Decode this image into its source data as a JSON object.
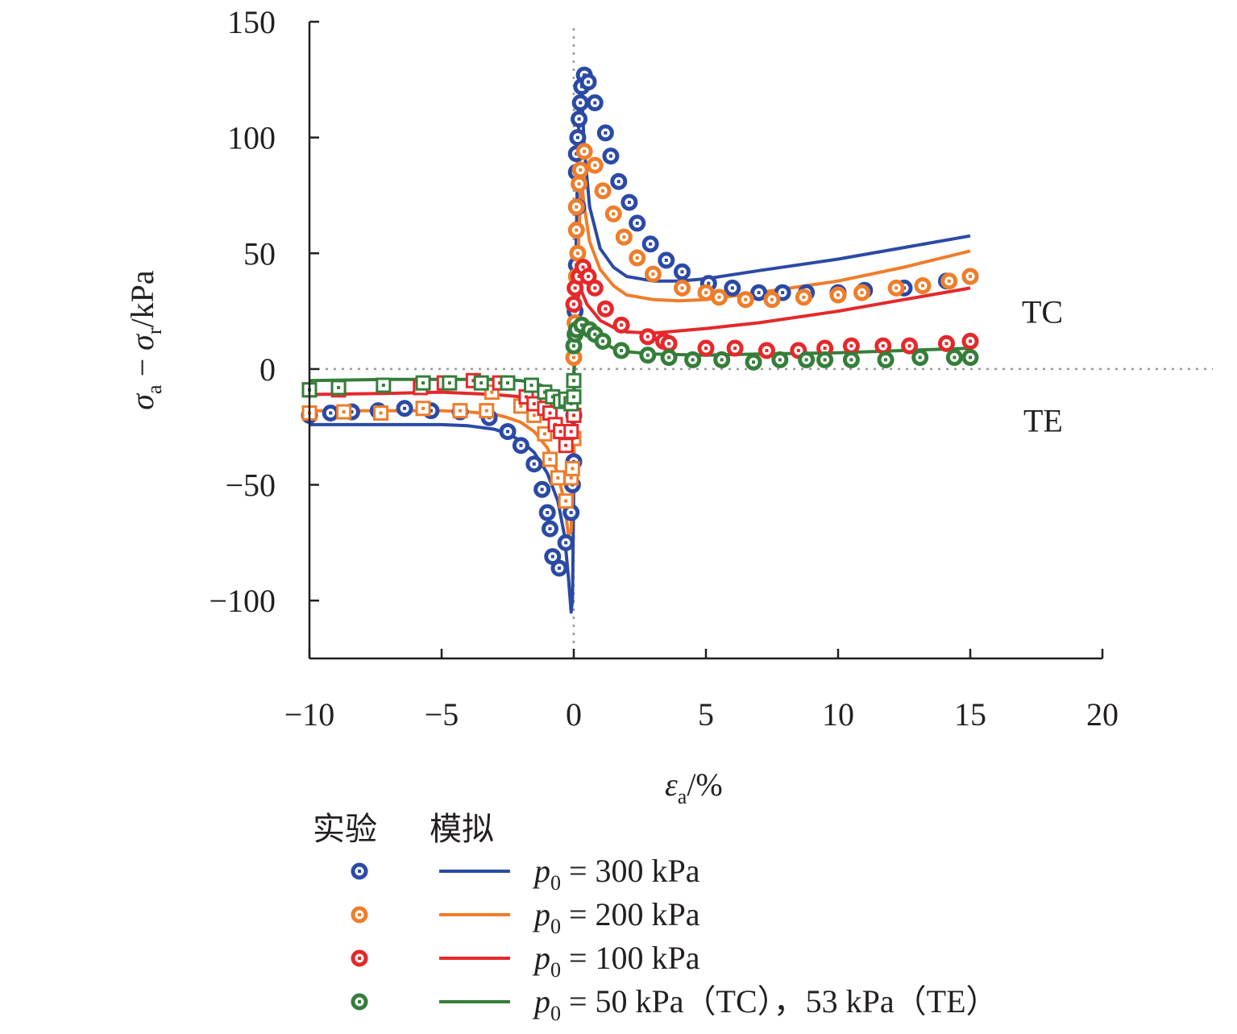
{
  "chart_data": {
    "type": "line",
    "xlim": [
      -10,
      20
    ],
    "ylim": [
      -125,
      150
    ],
    "x_ticks": [
      -10,
      -5,
      0,
      5,
      10,
      15,
      20
    ],
    "y_ticks": [
      -100,
      -50,
      0,
      50,
      100,
      150
    ],
    "x_tick_labels": [
      "−10",
      "−5",
      "0",
      "5",
      "10",
      "15",
      "20"
    ],
    "y_tick_labels": [
      "−100",
      "−50",
      "0",
      "50",
      "100",
      "150"
    ],
    "xlabel": {
      "main": "ε",
      "sub": "a",
      "rest": "/%"
    },
    "ylabel": {
      "s1": "σ",
      "sub1": "a",
      "minus": " − ",
      "s2": "σ",
      "sub2": "r",
      "rest": "/kPa"
    },
    "region_labels": {
      "upper": "TC",
      "lower": "TE"
    },
    "zero_lines": {
      "style": "dotted",
      "color": "#999999"
    },
    "legend": {
      "header_exp": "实验",
      "header_sim": "模拟",
      "entries": [
        {
          "p": "p",
          "sub": "0",
          "text": " = 300 kPa"
        },
        {
          "p": "p",
          "sub": "0",
          "text": " = 200 kPa"
        },
        {
          "p": "p",
          "sub": "0",
          "text": " = 100 kPa"
        },
        {
          "p": "p",
          "sub": "0",
          "text": " = 50 kPa（TC），53 kPa（TE）"
        }
      ]
    },
    "series": [
      {
        "color": "#2b4aa5",
        "sim_TC": [
          [
            0,
            -5
          ],
          [
            0.05,
            30
          ],
          [
            0.1,
            60
          ],
          [
            0.15,
            90
          ],
          [
            0.2,
            110
          ],
          [
            0.25,
            120
          ],
          [
            0.3,
            120
          ],
          [
            0.4,
            95
          ],
          [
            0.6,
            70
          ],
          [
            1,
            52
          ],
          [
            1.5,
            44
          ],
          [
            2,
            40
          ],
          [
            3,
            38
          ],
          [
            4,
            38
          ],
          [
            5,
            39
          ],
          [
            7,
            42.5
          ],
          [
            10,
            47.5
          ],
          [
            12.5,
            52.5
          ],
          [
            15,
            57.5
          ]
        ],
        "sim_TE": [
          [
            -10,
            -24
          ],
          [
            -7,
            -24
          ],
          [
            -5,
            -24
          ],
          [
            -4,
            -24.5
          ],
          [
            -3,
            -26
          ],
          [
            -2.5,
            -28
          ],
          [
            -2,
            -31
          ],
          [
            -1.5,
            -36
          ],
          [
            -1,
            -45
          ],
          [
            -0.6,
            -57
          ],
          [
            -0.35,
            -72
          ],
          [
            -0.2,
            -90
          ],
          [
            -0.1,
            -105
          ],
          [
            -0.05,
            -100
          ],
          [
            0,
            -50
          ],
          [
            0.02,
            -5
          ]
        ],
        "exp_TC": [
          [
            0,
            -40
          ],
          [
            0,
            -20
          ],
          [
            0.05,
            25
          ],
          [
            0.1,
            45
          ],
          [
            0.15,
            70
          ],
          [
            0.1,
            85
          ],
          [
            0.1,
            93
          ],
          [
            0.15,
            100
          ],
          [
            0.2,
            108
          ],
          [
            0.25,
            115
          ],
          [
            0.3,
            122
          ],
          [
            0.4,
            127
          ],
          [
            0.55,
            124
          ],
          [
            0.8,
            115
          ],
          [
            1.2,
            102
          ],
          [
            1.4,
            92
          ],
          [
            1.7,
            81
          ],
          [
            2.1,
            72
          ],
          [
            2.4,
            63
          ],
          [
            2.9,
            54
          ],
          [
            3.5,
            47
          ],
          [
            4.1,
            42
          ],
          [
            5.1,
            37
          ],
          [
            6.0,
            35
          ],
          [
            7.0,
            33
          ],
          [
            7.9,
            33
          ],
          [
            8.8,
            33
          ],
          [
            10,
            33
          ],
          [
            11,
            34
          ],
          [
            12.5,
            35
          ],
          [
            14.1,
            38
          ],
          [
            15,
            40
          ]
        ],
        "exp_TE": [
          [
            -10,
            -20
          ],
          [
            -9.2,
            -19
          ],
          [
            -8.4,
            -18.5
          ],
          [
            -7.4,
            -18
          ],
          [
            -6.4,
            -17
          ],
          [
            -5.4,
            -18
          ],
          [
            -4.3,
            -18.5
          ],
          [
            -3.2,
            -21
          ],
          [
            -2.5,
            -27
          ],
          [
            -2.0,
            -33
          ],
          [
            -1.5,
            -41
          ],
          [
            -1.2,
            -52
          ],
          [
            -1.0,
            -62
          ],
          [
            -0.9,
            -69
          ],
          [
            -0.8,
            -81
          ],
          [
            -0.55,
            -86
          ],
          [
            -0.3,
            -75
          ],
          [
            -0.1,
            -62
          ],
          [
            -0.05,
            -50
          ]
        ]
      },
      {
        "color": "#ef7d2b",
        "sim_TC": [
          [
            0,
            -5
          ],
          [
            0.1,
            30
          ],
          [
            0.2,
            60
          ],
          [
            0.25,
            75
          ],
          [
            0.3,
            80
          ],
          [
            0.4,
            70
          ],
          [
            0.6,
            55
          ],
          [
            1,
            43
          ],
          [
            1.5,
            36
          ],
          [
            2,
            32
          ],
          [
            3,
            30
          ],
          [
            4,
            29.5
          ],
          [
            5,
            30
          ],
          [
            7,
            33
          ],
          [
            10,
            38
          ],
          [
            12.5,
            44
          ],
          [
            15,
            51
          ]
        ],
        "sim_TE": [
          [
            -10,
            -18
          ],
          [
            -7,
            -18
          ],
          [
            -5,
            -18
          ],
          [
            -4,
            -18.5
          ],
          [
            -3,
            -19.5
          ],
          [
            -2.5,
            -21
          ],
          [
            -2,
            -23
          ],
          [
            -1.5,
            -27
          ],
          [
            -1,
            -34
          ],
          [
            -0.6,
            -45
          ],
          [
            -0.35,
            -58
          ],
          [
            -0.2,
            -72
          ],
          [
            -0.1,
            -70
          ],
          [
            0,
            -40
          ],
          [
            0.02,
            -5
          ]
        ],
        "exp_TC": [
          [
            0,
            5
          ],
          [
            0.05,
            20
          ],
          [
            0.1,
            40
          ],
          [
            0.15,
            50
          ],
          [
            0.1,
            60
          ],
          [
            0.1,
            70
          ],
          [
            0.2,
            80
          ],
          [
            0.25,
            86
          ],
          [
            0.4,
            94
          ],
          [
            0.8,
            88
          ],
          [
            1.1,
            77
          ],
          [
            1.5,
            67
          ],
          [
            1.9,
            57
          ],
          [
            2.4,
            48
          ],
          [
            3.0,
            41
          ],
          [
            4.1,
            35
          ],
          [
            5.0,
            33
          ],
          [
            5.5,
            31
          ],
          [
            6.5,
            30
          ],
          [
            7.5,
            30
          ],
          [
            8.7,
            31
          ],
          [
            10,
            32
          ],
          [
            10.9,
            33
          ],
          [
            12.2,
            35
          ],
          [
            13.2,
            36
          ],
          [
            14.2,
            38
          ],
          [
            15,
            40
          ]
        ],
        "exp_TE": [
          [
            -10,
            -19
          ],
          [
            -8.7,
            -18.5
          ],
          [
            -7.3,
            -19
          ],
          [
            -5.7,
            -17
          ],
          [
            -4.3,
            -18
          ],
          [
            -3.3,
            -18
          ],
          [
            -3.1,
            -10
          ],
          [
            -2.0,
            -16
          ],
          [
            -1.5,
            -20
          ],
          [
            -1.1,
            -28
          ],
          [
            -0.9,
            -39
          ],
          [
            -0.6,
            -47
          ],
          [
            -0.3,
            -57
          ],
          [
            -0.1,
            -47
          ],
          [
            -0.05,
            -43
          ],
          [
            0,
            -30
          ]
        ]
      },
      {
        "color": "#e5282a",
        "sim_TC": [
          [
            0,
            -3
          ],
          [
            0.1,
            20
          ],
          [
            0.15,
            30
          ],
          [
            0.25,
            35
          ],
          [
            0.35,
            32
          ],
          [
            0.5,
            28
          ],
          [
            1,
            21
          ],
          [
            1.5,
            18
          ],
          [
            2,
            16
          ],
          [
            3,
            15.5
          ],
          [
            5,
            17.5
          ],
          [
            7,
            20
          ],
          [
            10,
            25
          ],
          [
            12.5,
            30
          ],
          [
            15,
            35
          ]
        ],
        "sim_TE": [
          [
            -10,
            -11
          ],
          [
            -7,
            -10.5
          ],
          [
            -5,
            -10
          ],
          [
            -4,
            -10.5
          ],
          [
            -3,
            -11
          ],
          [
            -2,
            -12
          ],
          [
            -1.5,
            -14
          ],
          [
            -1,
            -17
          ],
          [
            -0.6,
            -22
          ],
          [
            -0.35,
            -28
          ],
          [
            -0.2,
            -33
          ],
          [
            -0.1,
            -30
          ],
          [
            0,
            -18
          ],
          [
            0.02,
            -3
          ]
        ],
        "exp_TC": [
          [
            0,
            28
          ],
          [
            0.05,
            35
          ],
          [
            0.2,
            40
          ],
          [
            0.35,
            44
          ],
          [
            0.55,
            40
          ],
          [
            0.8,
            35
          ],
          [
            1.2,
            26
          ],
          [
            1.8,
            19
          ],
          [
            2.8,
            14
          ],
          [
            3.4,
            12
          ],
          [
            3.6,
            11
          ],
          [
            5.0,
            9
          ],
          [
            6.1,
            9
          ],
          [
            7.3,
            8
          ],
          [
            8.5,
            8
          ],
          [
            9.5,
            9
          ],
          [
            10.5,
            10
          ],
          [
            11.7,
            10
          ],
          [
            12.7,
            10
          ],
          [
            14.1,
            11
          ],
          [
            15,
            12
          ]
        ],
        "exp_TE": [
          [
            -10,
            -9
          ],
          [
            -8.9,
            -9
          ],
          [
            -5.8,
            -8
          ],
          [
            -4.9,
            -6
          ],
          [
            -3.8,
            -5
          ],
          [
            -2.8,
            -6
          ],
          [
            -1.8,
            -12
          ],
          [
            -1.5,
            -15
          ],
          [
            -1.1,
            -17
          ],
          [
            -0.9,
            -19
          ],
          [
            -0.7,
            -24
          ],
          [
            -0.5,
            -27
          ],
          [
            -0.3,
            -33
          ],
          [
            -0.1,
            -27
          ],
          [
            0,
            -20
          ]
        ]
      },
      {
        "color": "#357e3a",
        "sim_TC": [
          [
            0,
            -2
          ],
          [
            0.1,
            10
          ],
          [
            0.2,
            16
          ],
          [
            0.3,
            18
          ],
          [
            0.5,
            16
          ],
          [
            1,
            12
          ],
          [
            1.5,
            9
          ],
          [
            2,
            7.5
          ],
          [
            3,
            6.5
          ],
          [
            5,
            6
          ],
          [
            7,
            6.5
          ],
          [
            10,
            7
          ],
          [
            12.5,
            8
          ],
          [
            15,
            9
          ]
        ],
        "sim_TE": [
          [
            -10,
            -5
          ],
          [
            -7,
            -4.5
          ],
          [
            -5,
            -4.5
          ],
          [
            -4,
            -4.5
          ],
          [
            -3,
            -4.5
          ],
          [
            -2,
            -5
          ],
          [
            -1.5,
            -6
          ],
          [
            -1,
            -8
          ],
          [
            -0.6,
            -11
          ],
          [
            -0.3,
            -15
          ],
          [
            -0.15,
            -17
          ],
          [
            0,
            -10
          ],
          [
            0.02,
            -2
          ]
        ],
        "exp_TC": [
          [
            0,
            10
          ],
          [
            0.05,
            15
          ],
          [
            0.1,
            17
          ],
          [
            0.3,
            19
          ],
          [
            0.6,
            17
          ],
          [
            0.8,
            15
          ],
          [
            1.1,
            12
          ],
          [
            1.8,
            8
          ],
          [
            2.8,
            6
          ],
          [
            3.6,
            5
          ],
          [
            4.5,
            4
          ],
          [
            5.6,
            4
          ],
          [
            6.8,
            3
          ],
          [
            7.8,
            4
          ],
          [
            8.8,
            4
          ],
          [
            9.5,
            4
          ],
          [
            10.5,
            4
          ],
          [
            11.8,
            4
          ],
          [
            13.1,
            5
          ],
          [
            14.4,
            5
          ],
          [
            15,
            5
          ]
        ],
        "exp_TE": [
          [
            -10,
            -9
          ],
          [
            -8.9,
            -8
          ],
          [
            -7.2,
            -7
          ],
          [
            -5.7,
            -6
          ],
          [
            -4.7,
            -6
          ],
          [
            -3.5,
            -6
          ],
          [
            -2.5,
            -6
          ],
          [
            -1.6,
            -7
          ],
          [
            -1.1,
            -10
          ],
          [
            -0.8,
            -12
          ],
          [
            -0.5,
            -14
          ],
          [
            -0.3,
            -13
          ],
          [
            -0.1,
            -15
          ],
          [
            0,
            -12
          ],
          [
            0,
            -5
          ]
        ]
      }
    ]
  }
}
